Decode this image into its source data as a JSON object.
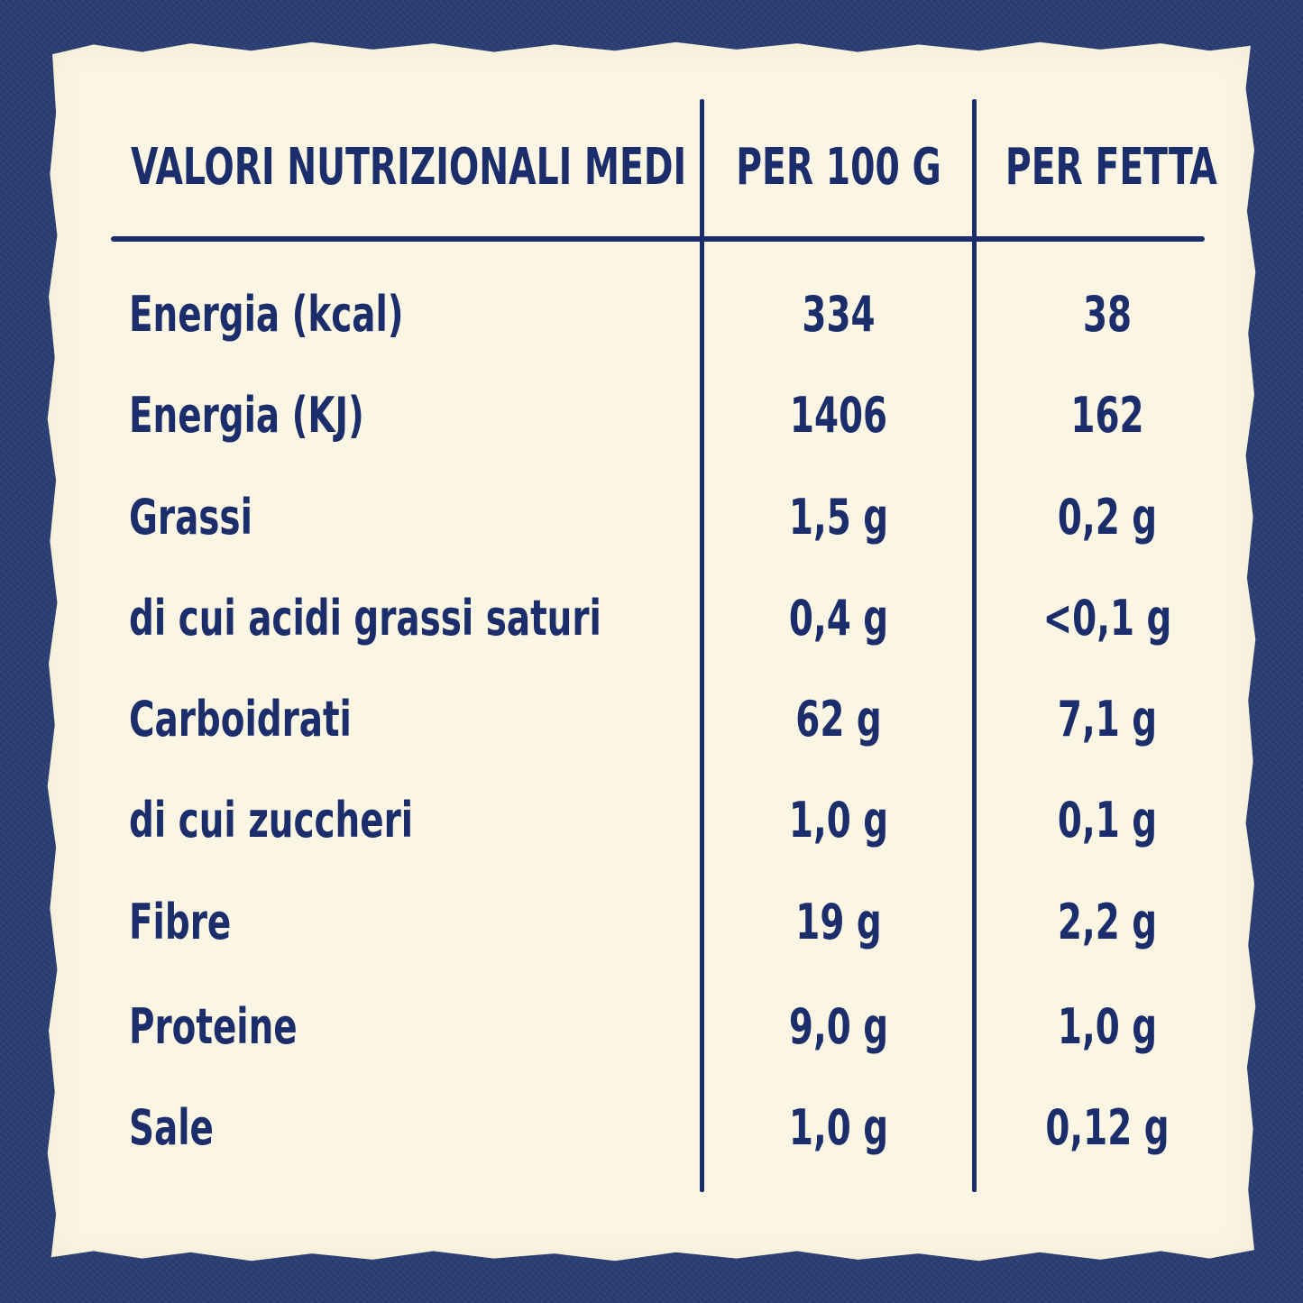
{
  "table": {
    "headers": [
      "VALORI NUTRIZIONALI MEDI",
      "PER 100 G",
      "PER FETTA"
    ],
    "rows": [
      {
        "label": "Energia (kcal)",
        "per_100g": "334",
        "per_fetta": "38"
      },
      {
        "label": "Energia (KJ)",
        "per_100g": "1406",
        "per_fetta": "162"
      },
      {
        "label": "Grassi",
        "per_100g": "1,5 g",
        "per_fetta": "0,2 g"
      },
      {
        "label": "di cui acidi grassi saturi",
        "per_100g": "0,4 g",
        "per_fetta": "<0,1 g"
      },
      {
        "label": "Carboidrati",
        "per_100g": "62 g",
        "per_fetta": "7,1 g"
      },
      {
        "label": "di cui zuccheri",
        "per_100g": "1,0 g",
        "per_fetta": "0,1 g"
      },
      {
        "label": "Fibre",
        "per_100g": "19 g",
        "per_fetta": "2,2 g"
      },
      {
        "label": "Proteine",
        "per_100g": "9,0 g",
        "per_fetta": "1,0 g"
      },
      {
        "label": "Sale",
        "per_100g": "1,0 g",
        "per_fetta": "0,12 g"
      }
    ]
  },
  "colors": {
    "background": "#2b3e73",
    "card": "#fbf5e3",
    "ink": "#1b2d6b"
  }
}
